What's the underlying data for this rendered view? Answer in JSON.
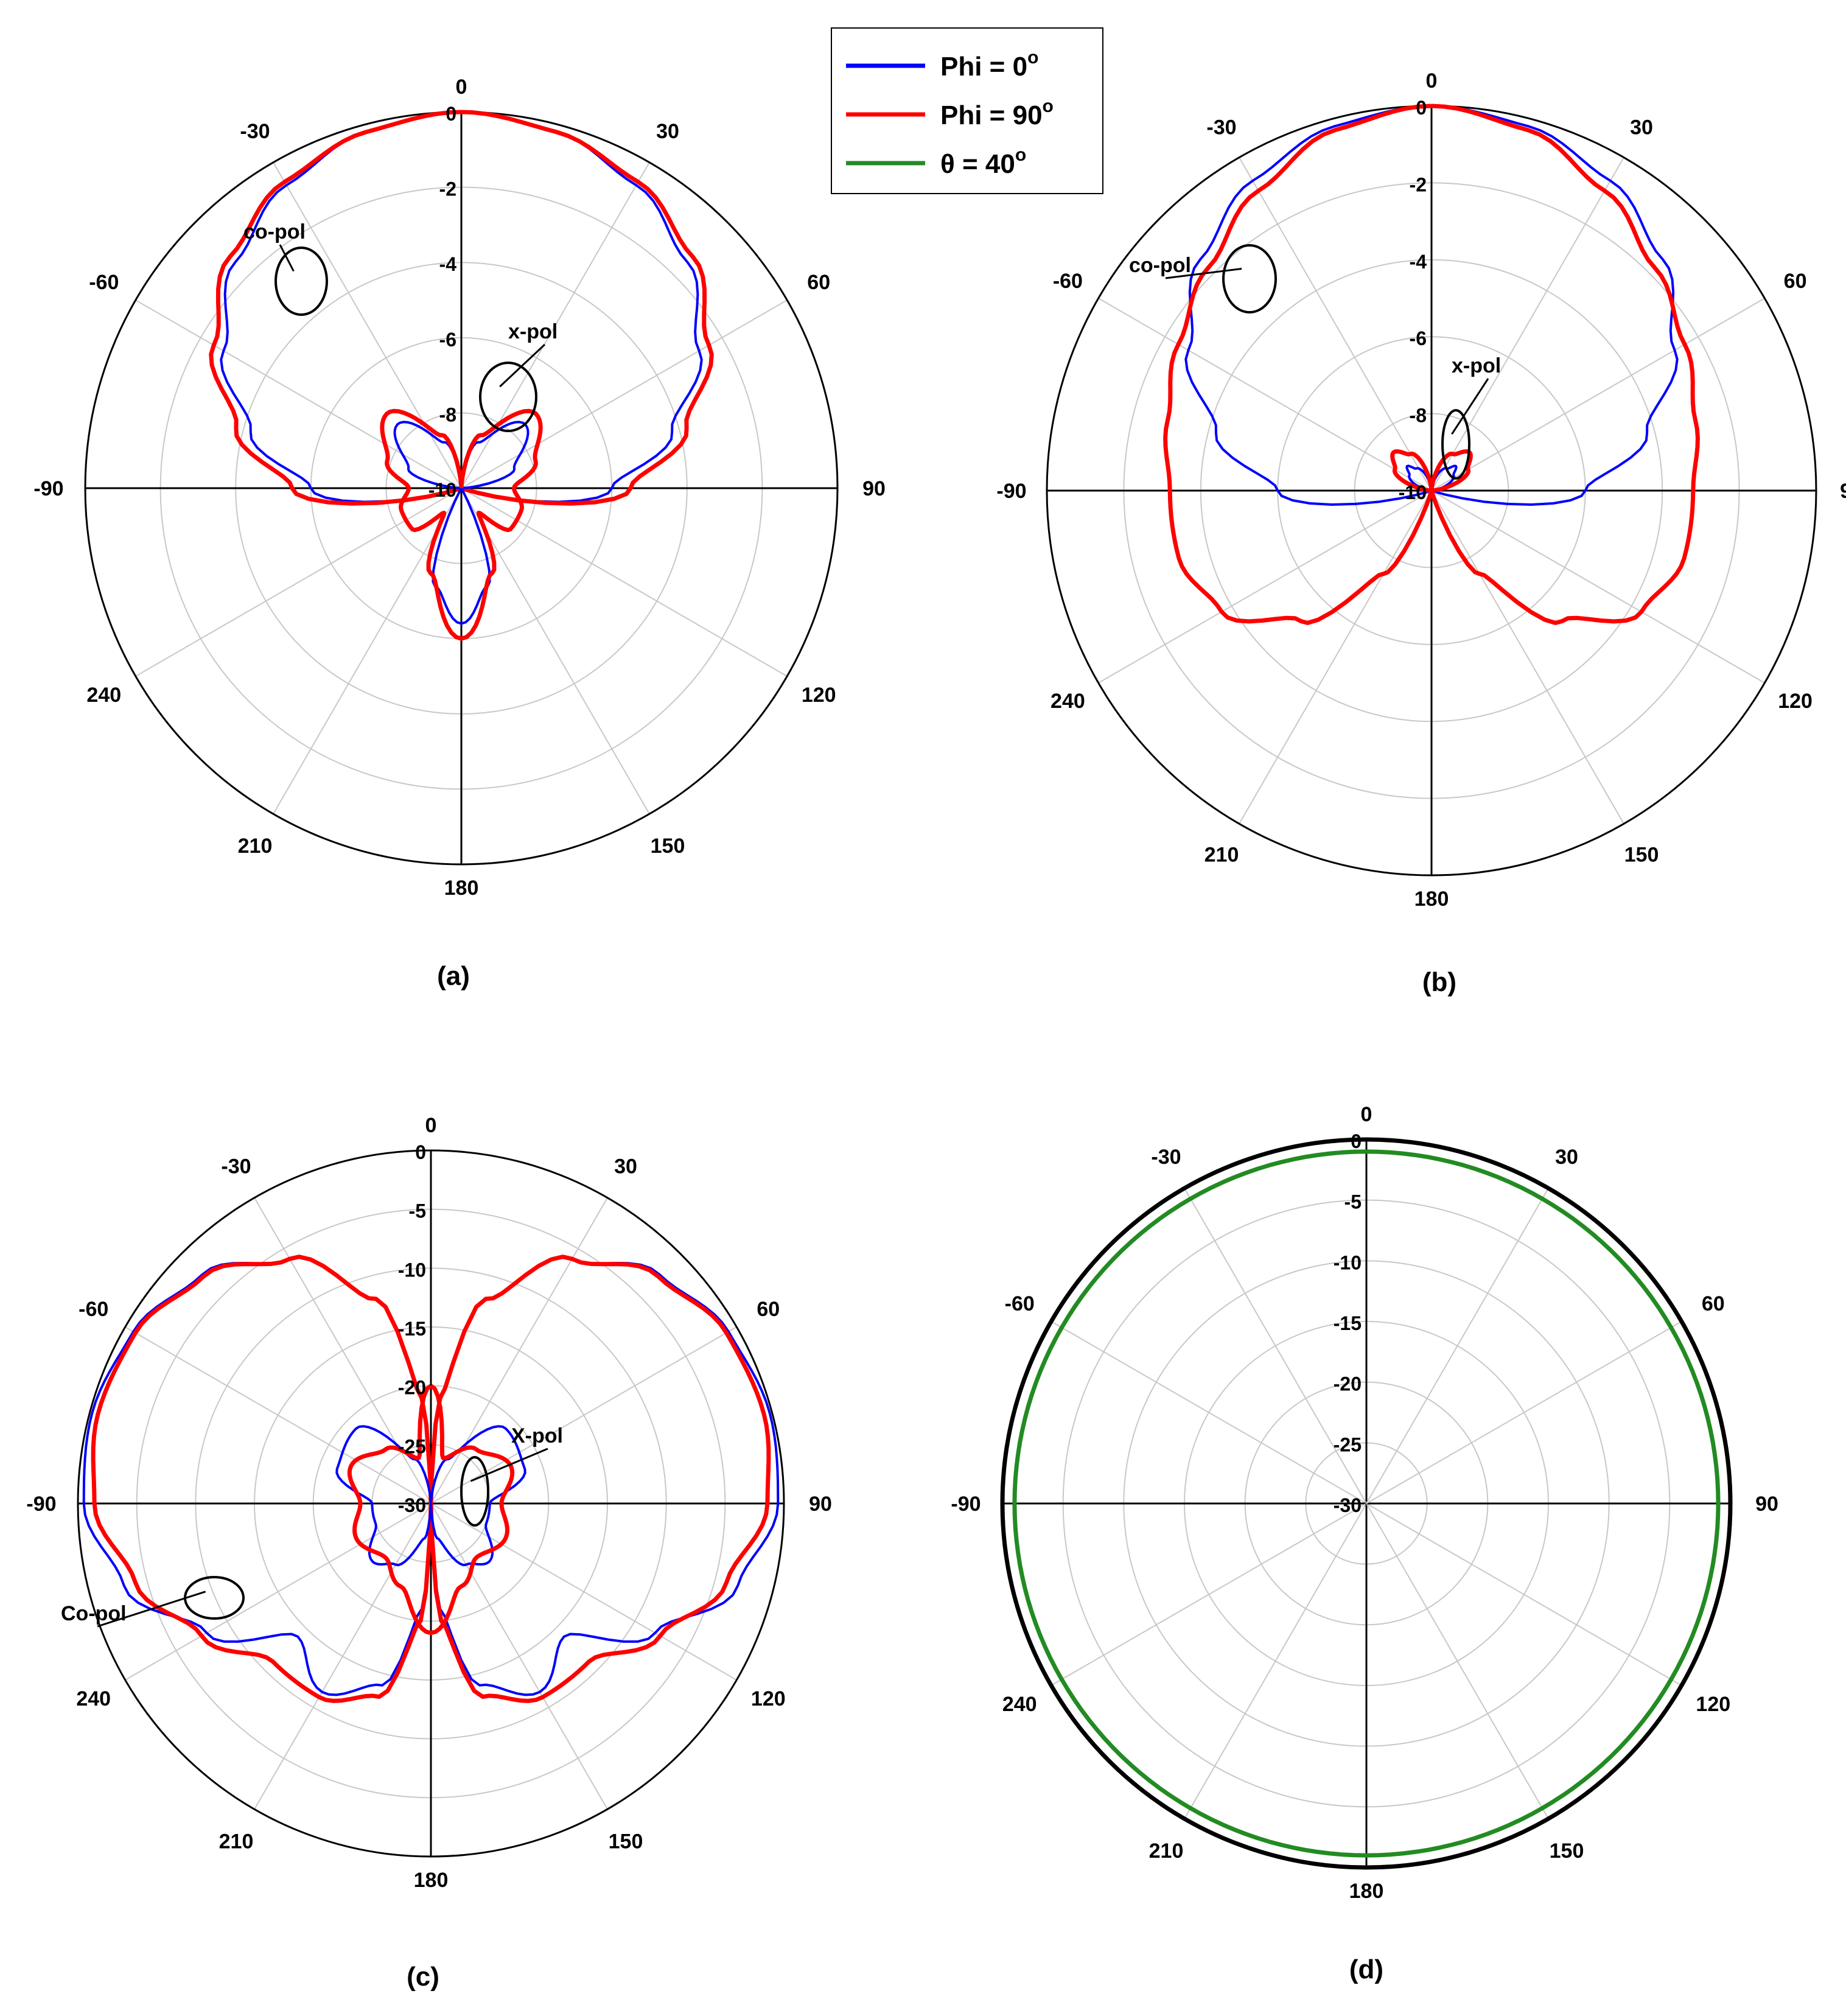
{
  "colors": {
    "phi0": "#0000ff",
    "phi90": "#ff0000",
    "theta40": "#228b22",
    "grid": "#c8c8c8",
    "axis": "#000000"
  },
  "legend": [
    {
      "label": "Phi = 0",
      "sup": "o",
      "color": "#0000ff"
    },
    {
      "label": "Phi = 90",
      "sup": "o",
      "color": "#ff0000"
    },
    {
      "label": "θ = 40",
      "sup": "o",
      "color": "#228b22"
    }
  ],
  "chart_data": [
    {
      "type": "polar",
      "panel_label": "(a)",
      "angle_labels": [
        "0",
        "-30",
        "-60",
        "-90",
        "240",
        "210",
        "180",
        "150",
        "120",
        "90",
        "60",
        "30"
      ],
      "radial_ticks": [
        "0",
        "-2",
        "-4",
        "-6",
        "-8",
        "-10"
      ],
      "rlim": [
        -10,
        0
      ],
      "annotations": [
        "co-pol",
        "x-pol"
      ],
      "series": [
        {
          "name": "Phi = 0",
          "kind": "co-pol",
          "points": [
            [
              0,
              0
            ],
            [
              15,
              -0.2
            ],
            [
              30,
              -0.7
            ],
            [
              45,
              -1.5
            ],
            [
              60,
              -2.7
            ],
            [
              75,
              -4.2
            ],
            [
              90,
              -6
            ],
            [
              110,
              -10
            ]
          ]
        },
        {
          "name": "Phi = 90",
          "kind": "co-pol",
          "points": [
            [
              0,
              0
            ],
            [
              15,
              -0.2
            ],
            [
              30,
              -0.6
            ],
            [
              45,
              -1.3
            ],
            [
              60,
              -2.4
            ],
            [
              75,
              -3.8
            ],
            [
              90,
              -5.5
            ],
            [
              110,
              -10
            ]
          ]
        },
        {
          "name": "Phi = 0",
          "kind": "x-pol",
          "points": [
            [
              0,
              -10
            ],
            [
              20,
              -8.7
            ],
            [
              45,
              -7.6
            ],
            [
              70,
              -8.5
            ],
            [
              90,
              -10
            ],
            [
              150,
              -10
            ],
            [
              165,
              -7.3
            ],
            [
              180,
              -6.4
            ]
          ]
        },
        {
          "name": "Phi = 90",
          "kind": "x-pol",
          "points": [
            [
              0,
              -10
            ],
            [
              20,
              -8.5
            ],
            [
              45,
              -7.2
            ],
            [
              70,
              -7.9
            ],
            [
              90,
              -8.6
            ],
            [
              110,
              -8.3
            ],
            [
              130,
              -8.3
            ],
            [
              145,
              -9.2
            ],
            [
              160,
              -7.6
            ],
            [
              180,
              -6
            ]
          ]
        }
      ]
    },
    {
      "type": "polar",
      "panel_label": "(b)",
      "angle_labels": [
        "0",
        "-30",
        "-60",
        "-90",
        "240",
        "210",
        "180",
        "150",
        "120",
        "90",
        "60",
        "30"
      ],
      "radial_ticks": [
        "0",
        "-2",
        "-4",
        "-6",
        "-8",
        "-10"
      ],
      "rlim": [
        -10,
        0
      ],
      "annotations": [
        "co-pol",
        "x-pol"
      ],
      "series": [
        {
          "name": "Phi = 0",
          "kind": "co-pol",
          "points": [
            [
              0,
              0
            ],
            [
              15,
              -0.2
            ],
            [
              30,
              -0.7
            ],
            [
              45,
              -1.5
            ],
            [
              60,
              -2.7
            ],
            [
              75,
              -4.2
            ],
            [
              90,
              -6
            ],
            [
              110,
              -10
            ]
          ]
        },
        {
          "name": "Phi = 90",
          "kind": "co-pol",
          "points": [
            [
              0,
              0
            ],
            [
              15,
              -0.3
            ],
            [
              30,
              -1
            ],
            [
              45,
              -1.8
            ],
            [
              60,
              -2.4
            ],
            [
              75,
              -2.9
            ],
            [
              90,
              -3.2
            ],
            [
              105,
              -3.2
            ],
            [
              120,
              -3.7
            ],
            [
              135,
              -5.2
            ],
            [
              150,
              -7.5
            ],
            [
              165,
              -10
            ]
          ]
        },
        {
          "name": "Phi = 0",
          "kind": "x-pol",
          "points": [
            [
              0,
              -10
            ],
            [
              35,
              -9.3
            ],
            [
              45,
              -9.1
            ],
            [
              55,
              -9.3
            ],
            [
              90,
              -10
            ]
          ]
        },
        {
          "name": "Phi = 90",
          "kind": "x-pol",
          "points": [
            [
              0,
              -10
            ],
            [
              30,
              -8.9
            ],
            [
              45,
              -8.6
            ],
            [
              60,
              -8.9
            ],
            [
              90,
              -10
            ]
          ]
        }
      ]
    },
    {
      "type": "polar",
      "panel_label": "(c)",
      "angle_labels": [
        "0",
        "-30",
        "-60",
        "-90",
        "240",
        "210",
        "180",
        "150",
        "120",
        "90",
        "60",
        "30"
      ],
      "radial_ticks": [
        "0",
        "-5",
        "-10",
        "-15",
        "-20",
        "-25",
        "-30"
      ],
      "rlim": [
        -30,
        0
      ],
      "annotations": [
        "X-pol",
        "Co-pol"
      ],
      "series": [
        {
          "name": "Phi = 0",
          "kind": "co-pol",
          "points": [
            [
              0,
              -30
            ],
            [
              5,
              -21
            ],
            [
              15,
              -12
            ],
            [
              30,
              -6
            ],
            [
              45,
              -2.5
            ],
            [
              60,
              -0.8
            ],
            [
              75,
              -0.2
            ],
            [
              90,
              -0.5
            ],
            [
              105,
              -3
            ],
            [
              120,
              -8
            ],
            [
              135,
              -14
            ],
            [
              150,
              -11.5
            ],
            [
              165,
              -14
            ],
            [
              175,
              -21
            ],
            [
              180,
              -30
            ]
          ]
        },
        {
          "name": "Phi = 90",
          "kind": "co-pol",
          "points": [
            [
              0,
              -30
            ],
            [
              5,
              -21
            ],
            [
              15,
              -12
            ],
            [
              30,
              -6
            ],
            [
              45,
              -2.7
            ],
            [
              60,
              -1
            ],
            [
              75,
              -0.7
            ],
            [
              90,
              -1.4
            ],
            [
              105,
              -4
            ],
            [
              120,
              -7.5
            ],
            [
              135,
              -11
            ],
            [
              150,
              -11
            ],
            [
              165,
              -13
            ],
            [
              175,
              -20
            ],
            [
              180,
              -30
            ]
          ]
        },
        {
          "name": "Phi = 0",
          "kind": "x-pol",
          "points": [
            [
              0,
              -30
            ],
            [
              20,
              -26
            ],
            [
              45,
              -21
            ],
            [
              70,
              -21.5
            ],
            [
              90,
              -25
            ],
            [
              110,
              -25
            ],
            [
              135,
              -23
            ],
            [
              150,
              -24
            ],
            [
              170,
              -27
            ],
            [
              180,
              -30
            ]
          ]
        },
        {
          "name": "Phi = 90",
          "kind": "x-pol",
          "points": [
            [
              0,
              -20
            ],
            [
              15,
              -26
            ],
            [
              40,
              -24
            ],
            [
              65,
              -22.5
            ],
            [
              90,
              -24
            ],
            [
              115,
              -23
            ],
            [
              140,
              -24
            ],
            [
              160,
              -22.5
            ],
            [
              180,
              -19
            ]
          ]
        }
      ]
    },
    {
      "type": "polar",
      "panel_label": "(d)",
      "angle_labels": [
        "0",
        "-30",
        "-60",
        "-90",
        "240",
        "210",
        "180",
        "150",
        "120",
        "90",
        "60",
        "30"
      ],
      "radial_ticks": [
        "0",
        "-5",
        "-10",
        "-15",
        "-20",
        "-25",
        "-30"
      ],
      "rlim": [
        -30,
        0
      ],
      "annotations": [],
      "series": [
        {
          "name": "θ = 40",
          "kind": "co-pol",
          "points": [
            [
              0,
              -1
            ],
            [
              90,
              -1
            ],
            [
              180,
              -1
            ],
            [
              270,
              -1
            ],
            [
              360,
              -1
            ]
          ]
        }
      ]
    }
  ]
}
